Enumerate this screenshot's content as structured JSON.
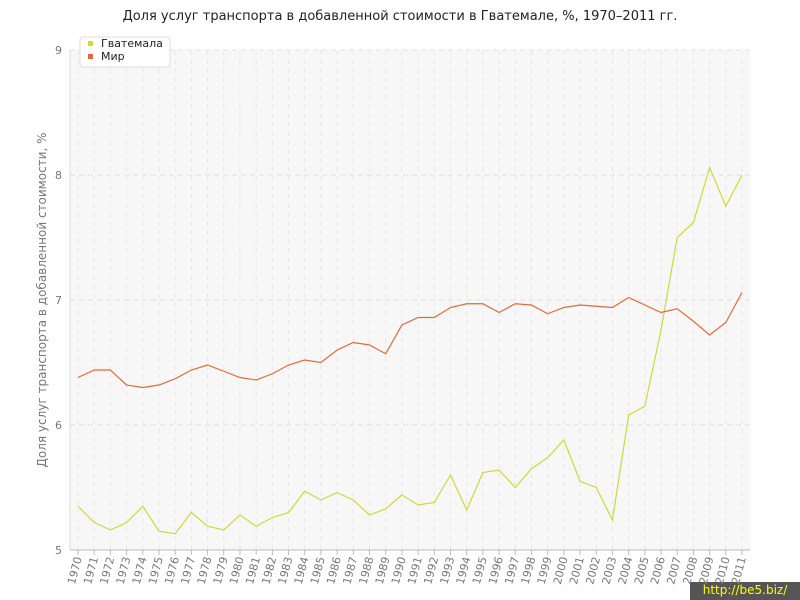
{
  "chart_data": {
    "type": "line",
    "title": "Доля услуг транспорта в добавленной стоимости в Гватемале, %, 1970–2011 гг.",
    "y_label": "Доля услуг транспорта в добавленной стоимости, %",
    "categories": [
      "1970",
      "1971",
      "1972",
      "1973",
      "1974",
      "1975",
      "1976",
      "1977",
      "1978",
      "1979",
      "1980",
      "1981",
      "1982",
      "1983",
      "1984",
      "1985",
      "1986",
      "1987",
      "1988",
      "1989",
      "1990",
      "1991",
      "1992",
      "1993",
      "1994",
      "1995",
      "1996",
      "1997",
      "1998",
      "1999",
      "2000",
      "2001",
      "2002",
      "2003",
      "2004",
      "2005",
      "2006",
      "2007",
      "2008",
      "2009",
      "2010",
      "2011"
    ],
    "series": [
      {
        "name": "Гватемала",
        "color": "#c8dc3c",
        "values": [
          5.35,
          5.22,
          5.16,
          5.22,
          5.35,
          5.15,
          5.13,
          5.3,
          5.19,
          5.16,
          5.28,
          5.19,
          5.26,
          5.3,
          5.47,
          5.4,
          5.46,
          5.4,
          5.28,
          5.33,
          5.44,
          5.36,
          5.38,
          5.6,
          5.32,
          5.62,
          5.64,
          5.5,
          5.65,
          5.74,
          5.88,
          5.55,
          5.5,
          5.24,
          6.08,
          6.15,
          6.76,
          7.5,
          7.62,
          8.06,
          7.75,
          8.0
        ]
      },
      {
        "name": "Мир",
        "color": "#e06a3c",
        "values": [
          6.38,
          6.44,
          6.44,
          6.32,
          6.3,
          6.32,
          6.37,
          6.44,
          6.48,
          6.43,
          6.38,
          6.36,
          6.41,
          6.48,
          6.52,
          6.5,
          6.6,
          6.66,
          6.64,
          6.57,
          6.8,
          6.86,
          6.86,
          6.94,
          6.97,
          6.97,
          6.9,
          6.97,
          6.96,
          6.89,
          6.94,
          6.96,
          6.95,
          6.94,
          7.02,
          6.96,
          6.9,
          6.93,
          6.83,
          6.72,
          6.82,
          7.06
        ]
      }
    ],
    "ylim": [
      5,
      9
    ],
    "yticks": [
      5,
      6,
      7,
      8,
      9
    ],
    "grid": true,
    "legend": "top-left",
    "watermark": "http://be5.biz/"
  }
}
